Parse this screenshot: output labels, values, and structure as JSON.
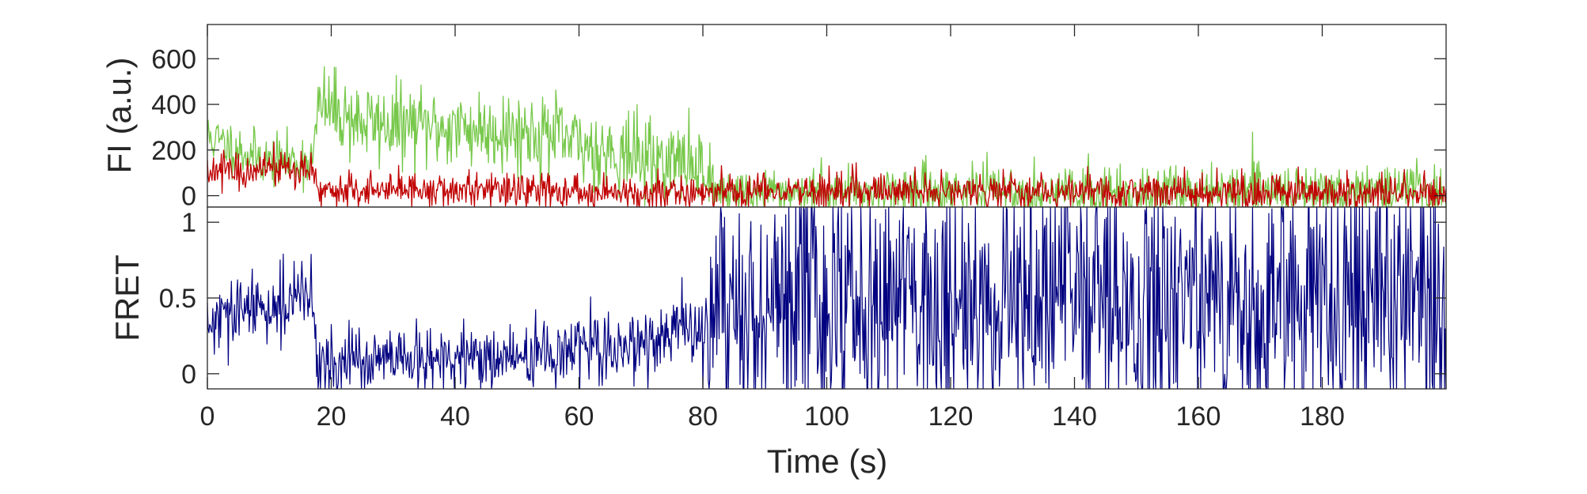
{
  "chart_data": [
    {
      "type": "line",
      "ylabel": "FI (a.u.)",
      "xlabel": "",
      "xlim": [
        0,
        200
      ],
      "ylim": [
        -50,
        750
      ],
      "xticks": [],
      "yticks": [
        0,
        200,
        400,
        600
      ],
      "ytick_labels": [
        "0",
        "200",
        "400",
        "600"
      ],
      "grid": false,
      "series": [
        {
          "color": "#77c84a",
          "x": [
            0,
            5,
            10,
            15,
            17,
            18,
            25,
            35,
            45,
            55,
            60,
            70,
            80,
            82,
            90,
            100,
            120,
            140,
            160,
            180,
            200
          ],
          "y": [
            260,
            200,
            150,
            150,
            160,
            400,
            320,
            300,
            290,
            270,
            220,
            170,
            130,
            20,
            10,
            20,
            20,
            10,
            20,
            20,
            20
          ]
        },
        {
          "color": "#c00000",
          "x": [
            0,
            5,
            10,
            15,
            17,
            18,
            25,
            35,
            45,
            55,
            60,
            70,
            80,
            90,
            100,
            120,
            140,
            160,
            180,
            200
          ],
          "y": [
            100,
            110,
            120,
            120,
            130,
            20,
            20,
            20,
            25,
            20,
            10,
            15,
            15,
            20,
            20,
            20,
            15,
            15,
            15,
            15
          ]
        }
      ]
    },
    {
      "type": "line",
      "ylabel": "FRET",
      "xlabel": "Time (s)",
      "xlim": [
        0,
        200
      ],
      "ylim": [
        -0.1,
        1.1
      ],
      "xticks": [
        0,
        20,
        40,
        60,
        80,
        100,
        120,
        140,
        160,
        180
      ],
      "xtick_labels": [
        "0",
        "20",
        "40",
        "60",
        "80",
        "100",
        "120",
        "140",
        "160",
        "180"
      ],
      "yticks": [
        0,
        0.5,
        1
      ],
      "ytick_labels": [
        "0",
        "0.5",
        "1"
      ],
      "grid": false,
      "series": [
        {
          "color": "#000080",
          "x": [
            0,
            5,
            10,
            15,
            17,
            18,
            25,
            35,
            45,
            55,
            60,
            70,
            80,
            90,
            100,
            120,
            140,
            160,
            180,
            200
          ],
          "y": [
            0.3,
            0.4,
            0.45,
            0.5,
            0.5,
            0.05,
            0.08,
            0.08,
            0.1,
            0.12,
            0.15,
            0.2,
            0.3,
            0.45,
            0.5,
            0.5,
            0.5,
            0.5,
            0.5,
            0.5
          ]
        }
      ]
    }
  ]
}
